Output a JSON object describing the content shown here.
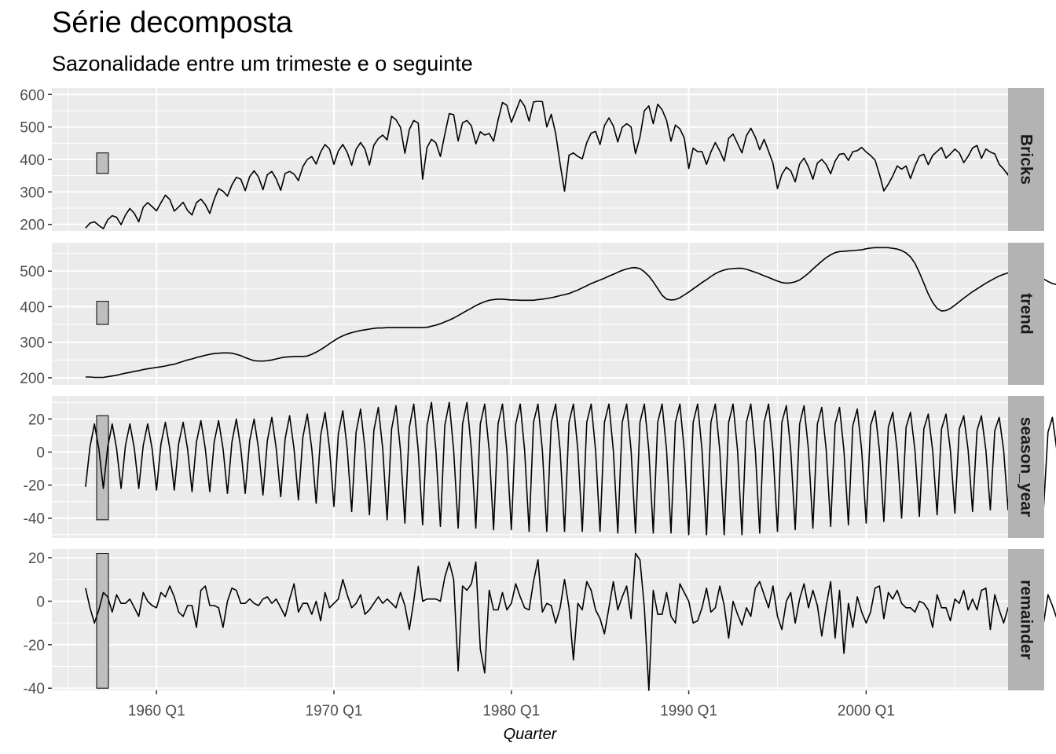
{
  "title": "Série decomposta",
  "subtitle": "Sazonalidade entre um trimeste e o seguinte",
  "chart_data": {
    "type": "line",
    "title": "Série decomposta",
    "subtitle": "Sazonalidade entre um trimeste e o seguinte",
    "xlabel": "Quarter",
    "x_start": 1956.0,
    "x_step": 0.25,
    "x_range": [
      1954.1,
      2008.0
    ],
    "x_ticks": [
      1960,
      1970,
      1980,
      1990,
      2000
    ],
    "x_tick_labels": [
      "1960 Q1",
      "1970 Q1",
      "1980 Q1",
      "1990 Q1",
      "2000 Q1"
    ],
    "grid": true,
    "background": "#EBEBEB",
    "strip_fill": "#B3B3B3",
    "line_color": "#000000",
    "panels": [
      {
        "name": "Bricks",
        "ylim": [
          180,
          620
        ],
        "yticks": [
          200,
          300,
          400,
          500,
          600
        ],
        "ytick_labels": [
          "200",
          "300",
          "400",
          "500",
          "600"
        ],
        "scale_bar": [
          357,
          420
        ],
        "values": [
          189,
          204,
          208,
          197,
          187,
          214,
          227,
          222,
          199,
          229,
          249,
          234,
          208,
          253,
          267,
          255,
          242,
          267,
          290,
          277,
          241,
          254,
          268,
          243,
          229,
          267,
          278,
          261,
          234,
          277,
          310,
          302,
          287,
          322,
          345,
          339,
          304,
          347,
          365,
          346,
          307,
          353,
          363,
          340,
          305,
          357,
          363,
          355,
          335,
          378,
          400,
          409,
          386,
          423,
          446,
          432,
          385,
          426,
          446,
          422,
          382,
          431,
          452,
          432,
          383,
          444,
          464,
          475,
          460,
          533,
          522,
          499,
          419,
          492,
          520,
          512,
          339,
          437,
          462,
          451,
          409,
          477,
          541,
          538,
          457,
          513,
          520,
          503,
          448,
          485,
          475,
          480,
          456,
          521,
          575,
          567,
          514,
          548,
          584,
          564,
          518,
          577,
          579,
          578,
          500,
          539,
          480,
          386,
          302,
          413,
          420,
          409,
          402,
          452,
          481,
          486,
          446,
          504,
          528,
          503,
          454,
          499,
          510,
          500,
          418,
          469,
          550,
          565,
          510,
          570,
          553,
          520,
          456,
          506,
          494,
          466,
          372,
          435,
          424,
          424,
          385,
          423,
          452,
          426,
          395,
          465,
          478,
          449,
          420,
          473,
          496,
          469,
          430,
          462,
          425,
          388,
          310,
          354,
          376,
          365,
          331,
          386,
          404,
          377,
          339,
          389,
          400,
          384,
          356,
          395,
          416,
          418,
          397,
          424,
          427,
          437,
          423,
          412,
          398,
          354,
          303,
          324,
          349,
          380,
          370,
          380,
          341,
          380,
          410,
          416,
          384,
          412,
          425,
          437,
          404,
          417,
          432,
          420,
          390,
          410,
          435,
          443,
          403,
          432,
          423,
          417,
          385,
          370,
          352,
          435
        ]
      },
      {
        "name": "trend",
        "ylim": [
          180,
          580
        ],
        "yticks": [
          200,
          300,
          400,
          500
        ],
        "ytick_labels": [
          "200",
          "300",
          "400",
          "500"
        ],
        "scale_bar": [
          350,
          415
        ],
        "values": [
          202,
          202,
          201,
          201,
          201,
          203,
          205,
          207,
          210,
          213,
          215,
          218,
          220,
          223,
          225,
          227,
          229,
          231,
          233,
          236,
          238,
          242,
          246,
          250,
          253,
          257,
          260,
          263,
          266,
          268,
          269,
          270,
          270,
          269,
          266,
          262,
          257,
          252,
          248,
          247,
          247,
          248,
          250,
          253,
          256,
          258,
          259,
          260,
          260,
          260,
          261,
          266,
          272,
          279,
          287,
          296,
          304,
          312,
          318,
          323,
          327,
          330,
          333,
          335,
          337,
          339,
          340,
          340,
          341,
          341,
          341,
          341,
          341,
          341,
          341,
          341,
          341,
          342,
          345,
          348,
          352,
          357,
          362,
          368,
          375,
          382,
          389,
          396,
          403,
          409,
          414,
          418,
          420,
          421,
          421,
          420,
          419,
          419,
          418,
          418,
          418,
          418,
          420,
          421,
          423,
          425,
          428,
          431,
          434,
          437,
          442,
          447,
          453,
          459,
          465,
          470,
          475,
          480,
          486,
          491,
          497,
          502,
          506,
          509,
          510,
          507,
          498,
          486,
          470,
          451,
          432,
          421,
          419,
          420,
          425,
          433,
          441,
          450,
          459,
          468,
          476,
          485,
          493,
          499,
          503,
          506,
          507,
          508,
          508,
          505,
          501,
          497,
          492,
          487,
          482,
          477,
          472,
          468,
          466,
          467,
          470,
          475,
          484,
          494,
          506,
          517,
          528,
          538,
          546,
          552,
          555,
          556,
          557,
          558,
          559,
          560,
          563,
          565,
          566,
          566,
          566,
          566,
          564,
          562,
          558,
          551,
          540,
          522,
          496,
          466,
          436,
          412,
          395,
          388,
          389,
          395,
          404,
          414,
          424,
          433,
          442,
          450,
          458,
          466,
          473,
          480,
          486,
          491,
          495,
          498,
          499,
          498,
          497,
          494,
          490,
          485,
          478,
          471,
          465,
          462,
          461,
          462,
          462,
          462,
          462,
          464,
          468,
          475,
          485,
          497,
          510,
          523,
          534
        ]
      },
      {
        "name": "season_year",
        "ylim": [
          -52,
          34
        ],
        "yticks": [
          -40,
          -20,
          0,
          20
        ],
        "ytick_labels": [
          "-40",
          "-20",
          "0",
          "20"
        ],
        "scale_bar": [
          -41,
          22
        ],
        "values": [
          -21,
          3,
          17,
          2,
          -22,
          3,
          17,
          2,
          -22,
          4,
          17,
          2,
          -22,
          4,
          17,
          2,
          -23,
          5,
          18,
          2,
          -23,
          5,
          18,
          2,
          -24,
          6,
          19,
          2,
          -24,
          6,
          19,
          2,
          -25,
          6,
          20,
          2,
          -25,
          7,
          20,
          2,
          -26,
          7,
          21,
          2,
          -27,
          8,
          22,
          2,
          -29,
          9,
          23,
          2,
          -31,
          10,
          24,
          2,
          -33,
          11,
          25,
          2,
          -36,
          12,
          26,
          2,
          -38,
          13,
          27,
          2,
          -41,
          14,
          28,
          1,
          -43,
          15,
          29,
          1,
          -44,
          16,
          30,
          1,
          -45,
          16,
          30,
          1,
          -46,
          17,
          30,
          1,
          -46,
          17,
          29,
          1,
          -47,
          17,
          29,
          1,
          -47,
          17,
          29,
          1,
          -48,
          18,
          29,
          1,
          -48,
          18,
          29,
          1,
          -48,
          18,
          29,
          1,
          -48,
          18,
          29,
          1,
          -48,
          18,
          29,
          1,
          -49,
          18,
          29,
          1,
          -49,
          18,
          29,
          1,
          -49,
          18,
          29,
          1,
          -49,
          18,
          29,
          1,
          -50,
          18,
          29,
          1,
          -50,
          18,
          29,
          1,
          -50,
          18,
          29,
          1,
          -50,
          18,
          29,
          1,
          -49,
          18,
          29,
          1,
          -48,
          18,
          28,
          1,
          -47,
          17,
          28,
          1,
          -46,
          17,
          27,
          1,
          -45,
          17,
          27,
          1,
          -44,
          16,
          26,
          1,
          -43,
          16,
          25,
          1,
          -42,
          15,
          24,
          1,
          -40,
          15,
          24,
          1,
          -39,
          14,
          23,
          1,
          -38,
          14,
          23,
          1,
          -37,
          14,
          22,
          1,
          -36,
          13,
          22,
          1,
          -35,
          13,
          21,
          1,
          -35,
          13,
          21,
          1,
          -34,
          12,
          21,
          1,
          -34,
          12,
          21,
          1,
          -34,
          12,
          21,
          1,
          -33,
          12,
          21,
          1,
          -33,
          11,
          21,
          1,
          -33,
          11,
          21,
          1,
          -33,
          11,
          21,
          1,
          -33,
          11,
          21,
          1,
          -33,
          11,
          21,
          1,
          -33,
          8
        ]
      },
      {
        "name": "remainder",
        "ylim": [
          -41,
          24
        ],
        "yticks": [
          -40,
          -20,
          0,
          20
        ],
        "ytick_labels": [
          "-40",
          "-20",
          "0",
          "20"
        ],
        "scale_bar": [
          -40,
          22
        ],
        "values": [
          6,
          -3,
          -10,
          -4,
          4,
          2,
          -5,
          3,
          -1,
          -1,
          1,
          -3,
          -7,
          4,
          0,
          -2,
          -3,
          4,
          2,
          7,
          2,
          -5,
          -7,
          -2,
          -2,
          -12,
          5,
          7,
          -2,
          -2,
          -3,
          -12,
          0,
          6,
          5,
          -1,
          -1,
          1,
          -1,
          -2,
          1,
          2,
          -1,
          1,
          -3,
          -7,
          1,
          8,
          -5,
          -1,
          -1,
          -6,
          0,
          -9,
          4,
          -3,
          -1,
          1,
          10,
          3,
          -3,
          -1,
          3,
          -6,
          -4,
          -1,
          2,
          -1,
          1,
          -1,
          -3,
          4,
          -2,
          -13,
          0,
          16,
          0,
          1,
          1,
          1,
          0,
          11,
          18,
          10,
          -32,
          7,
          5,
          8,
          18,
          -22,
          -33,
          5,
          -4,
          -4,
          4,
          -4,
          -1,
          8,
          2,
          -3,
          -4,
          9,
          19,
          -5,
          -1,
          -2,
          -10,
          -3,
          10,
          -3,
          -27,
          -1,
          -4,
          9,
          5,
          -4,
          -8,
          -15,
          -3,
          9,
          -4,
          2,
          7,
          -8,
          22,
          19,
          -3,
          -41,
          5,
          -6,
          -6,
          4,
          -7,
          -10,
          8,
          4,
          0,
          -10,
          -9,
          -3,
          6,
          -5,
          -3,
          7,
          -2,
          -17,
          0,
          -6,
          -11,
          -3,
          -7,
          6,
          9,
          3,
          -3,
          7,
          -7,
          -13,
          0,
          4,
          -10,
          1,
          8,
          -3,
          5,
          -2,
          -16,
          -2,
          9,
          -17,
          5,
          -24,
          -1,
          -12,
          2,
          -5,
          -10,
          -5,
          6,
          7,
          -8,
          4,
          1,
          5,
          -1,
          -3,
          -3,
          -5,
          0,
          -1,
          -4,
          -12,
          3,
          -3,
          -3,
          -9,
          1,
          -1,
          5,
          -4,
          1,
          -4,
          5,
          6,
          -13,
          3,
          -4,
          -10,
          -3,
          -7,
          -4,
          2,
          -2,
          6,
          -1,
          7,
          -10,
          3,
          -2,
          -8,
          19,
          2,
          -15,
          -6,
          -4,
          -10,
          -5,
          -18,
          20
        ]
      }
    ]
  }
}
